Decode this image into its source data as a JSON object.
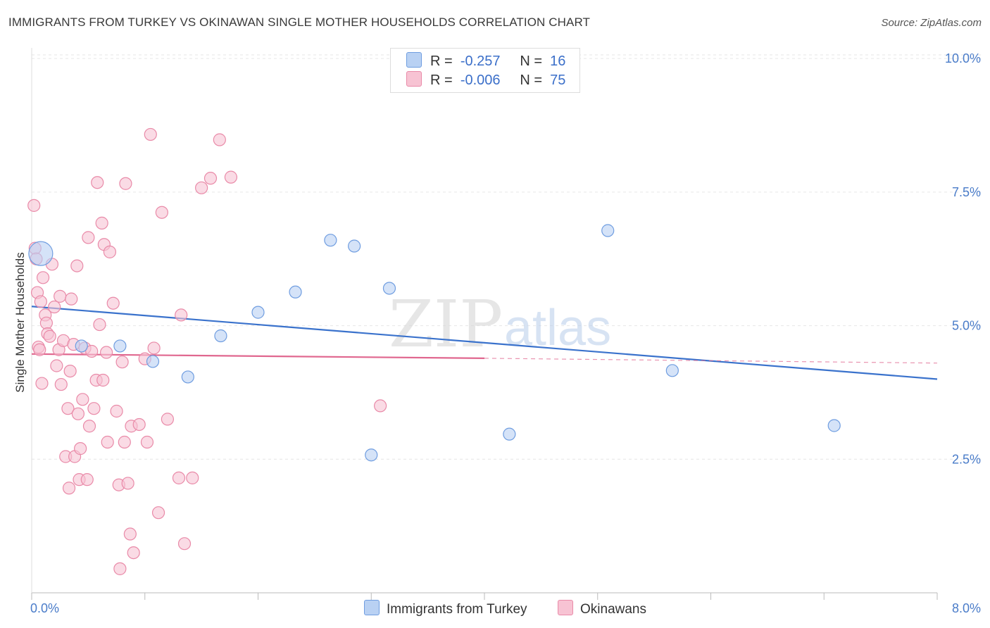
{
  "header": {
    "title": "IMMIGRANTS FROM TURKEY VS OKINAWAN SINGLE MOTHER HOUSEHOLDS CORRELATION CHART",
    "source": "Source: ZipAtlas.com"
  },
  "watermark": {
    "zip": "ZIP",
    "atlas": "atlas"
  },
  "legend": {
    "rows": [
      {
        "r_label": "R =",
        "r_value": "-0.257",
        "n_label": "N =",
        "n_value": "16"
      },
      {
        "r_label": "R =",
        "r_value": "-0.006",
        "n_label": "N =",
        "n_value": "75"
      }
    ]
  },
  "colors": {
    "blue_fill": "#b9d1f3",
    "blue_stroke": "#6f9de0",
    "blue_line": "#3a72cc",
    "pink_fill": "#f7c3d3",
    "pink_stroke": "#e98aa8",
    "pink_line": "#e0678f"
  },
  "chart_data": {
    "type": "scatter",
    "title": "IMMIGRANTS FROM TURKEY VS OKINAWAN SINGLE MOTHER HOUSEHOLDS CORRELATION CHART",
    "xlabel": "",
    "ylabel": "Single Mother Households",
    "xlim": [
      0,
      8
    ],
    "ylim": [
      0,
      10.2
    ],
    "x_tick_labels": [
      "0.0%",
      "8.0%"
    ],
    "y_ticks": [
      2.5,
      5.0,
      7.5,
      10.0
    ],
    "y_tick_labels": [
      "2.5%",
      "5.0%",
      "7.5%",
      "10.0%"
    ],
    "grid": true,
    "legend_position": "bottom",
    "series": [
      {
        "name": "Immigrants from Turkey",
        "color": "blue",
        "points": [
          {
            "x": 0.08,
            "y": 6.35,
            "big": true
          },
          {
            "x": 0.44,
            "y": 4.62
          },
          {
            "x": 0.78,
            "y": 4.62
          },
          {
            "x": 1.07,
            "y": 4.33
          },
          {
            "x": 1.38,
            "y": 4.04
          },
          {
            "x": 1.67,
            "y": 4.81
          },
          {
            "x": 2.0,
            "y": 5.25
          },
          {
            "x": 2.33,
            "y": 5.63
          },
          {
            "x": 2.64,
            "y": 6.6
          },
          {
            "x": 2.85,
            "y": 6.49
          },
          {
            "x": 3.16,
            "y": 5.7
          },
          {
            "x": 3.0,
            "y": 2.58
          },
          {
            "x": 4.22,
            "y": 2.97
          },
          {
            "x": 5.09,
            "y": 6.78
          },
          {
            "x": 5.66,
            "y": 4.16
          },
          {
            "x": 7.09,
            "y": 3.13
          }
        ],
        "trend": {
          "x0": 0.0,
          "y0": 5.36,
          "x1": 8.0,
          "y1": 4.0
        }
      },
      {
        "name": "Okinawans",
        "color": "pink",
        "points": [
          {
            "x": 0.02,
            "y": 7.25
          },
          {
            "x": 0.03,
            "y": 6.45
          },
          {
            "x": 0.04,
            "y": 6.25
          },
          {
            "x": 0.05,
            "y": 5.62
          },
          {
            "x": 0.06,
            "y": 4.6
          },
          {
            "x": 0.07,
            "y": 4.55
          },
          {
            "x": 0.08,
            "y": 5.45
          },
          {
            "x": 0.09,
            "y": 3.92
          },
          {
            "x": 0.1,
            "y": 5.9
          },
          {
            "x": 0.12,
            "y": 5.2
          },
          {
            "x": 0.13,
            "y": 5.05
          },
          {
            "x": 0.14,
            "y": 4.85
          },
          {
            "x": 0.16,
            "y": 4.8
          },
          {
            "x": 0.18,
            "y": 6.15
          },
          {
            "x": 0.2,
            "y": 5.35
          },
          {
            "x": 0.22,
            "y": 4.25
          },
          {
            "x": 0.24,
            "y": 4.55
          },
          {
            "x": 0.25,
            "y": 5.55
          },
          {
            "x": 0.26,
            "y": 3.9
          },
          {
            "x": 0.28,
            "y": 4.72
          },
          {
            "x": 0.3,
            "y": 2.55
          },
          {
            "x": 0.32,
            "y": 3.45
          },
          {
            "x": 0.34,
            "y": 4.15
          },
          {
            "x": 0.35,
            "y": 5.5
          },
          {
            "x": 0.37,
            "y": 4.65
          },
          {
            "x": 0.38,
            "y": 2.55
          },
          {
            "x": 0.4,
            "y": 6.12
          },
          {
            "x": 0.41,
            "y": 3.35
          },
          {
            "x": 0.42,
            "y": 2.12
          },
          {
            "x": 0.43,
            "y": 2.7
          },
          {
            "x": 0.45,
            "y": 3.62
          },
          {
            "x": 0.47,
            "y": 4.58
          },
          {
            "x": 0.49,
            "y": 2.12
          },
          {
            "x": 0.5,
            "y": 6.65
          },
          {
            "x": 0.51,
            "y": 3.12
          },
          {
            "x": 0.53,
            "y": 4.52
          },
          {
            "x": 0.55,
            "y": 3.45
          },
          {
            "x": 0.57,
            "y": 3.98
          },
          {
            "x": 0.58,
            "y": 7.68
          },
          {
            "x": 0.6,
            "y": 5.02
          },
          {
            "x": 0.62,
            "y": 6.92
          },
          {
            "x": 0.63,
            "y": 3.98
          },
          {
            "x": 0.64,
            "y": 6.52
          },
          {
            "x": 0.66,
            "y": 4.5
          },
          {
            "x": 0.67,
            "y": 2.82
          },
          {
            "x": 0.69,
            "y": 6.38
          },
          {
            "x": 0.72,
            "y": 5.42
          },
          {
            "x": 0.75,
            "y": 3.4
          },
          {
            "x": 0.77,
            "y": 2.02
          },
          {
            "x": 0.78,
            "y": 0.45
          },
          {
            "x": 0.8,
            "y": 4.32
          },
          {
            "x": 0.82,
            "y": 2.82
          },
          {
            "x": 0.83,
            "y": 7.66
          },
          {
            "x": 0.85,
            "y": 2.05
          },
          {
            "x": 0.87,
            "y": 1.1
          },
          {
            "x": 0.88,
            "y": 3.12
          },
          {
            "x": 0.9,
            "y": 0.75
          },
          {
            "x": 0.95,
            "y": 3.15
          },
          {
            "x": 1.0,
            "y": 4.38
          },
          {
            "x": 1.02,
            "y": 2.82
          },
          {
            "x": 1.05,
            "y": 8.58
          },
          {
            "x": 1.08,
            "y": 4.58
          },
          {
            "x": 1.12,
            "y": 1.5
          },
          {
            "x": 1.15,
            "y": 7.12
          },
          {
            "x": 1.2,
            "y": 3.25
          },
          {
            "x": 1.3,
            "y": 2.15
          },
          {
            "x": 1.32,
            "y": 5.2
          },
          {
            "x": 1.35,
            "y": 0.92
          },
          {
            "x": 1.42,
            "y": 2.15
          },
          {
            "x": 1.5,
            "y": 7.58
          },
          {
            "x": 1.58,
            "y": 7.76
          },
          {
            "x": 1.66,
            "y": 8.48
          },
          {
            "x": 1.76,
            "y": 7.78
          },
          {
            "x": 3.08,
            "y": 3.5
          },
          {
            "x": 0.33,
            "y": 1.96
          }
        ],
        "trend": {
          "x0": 0.0,
          "y0": 4.47,
          "x1": 4.0,
          "y1": 4.39
        },
        "trend_dashed": {
          "x0": 4.0,
          "y0": 4.39,
          "x1": 8.0,
          "y1": 4.3
        }
      }
    ]
  }
}
